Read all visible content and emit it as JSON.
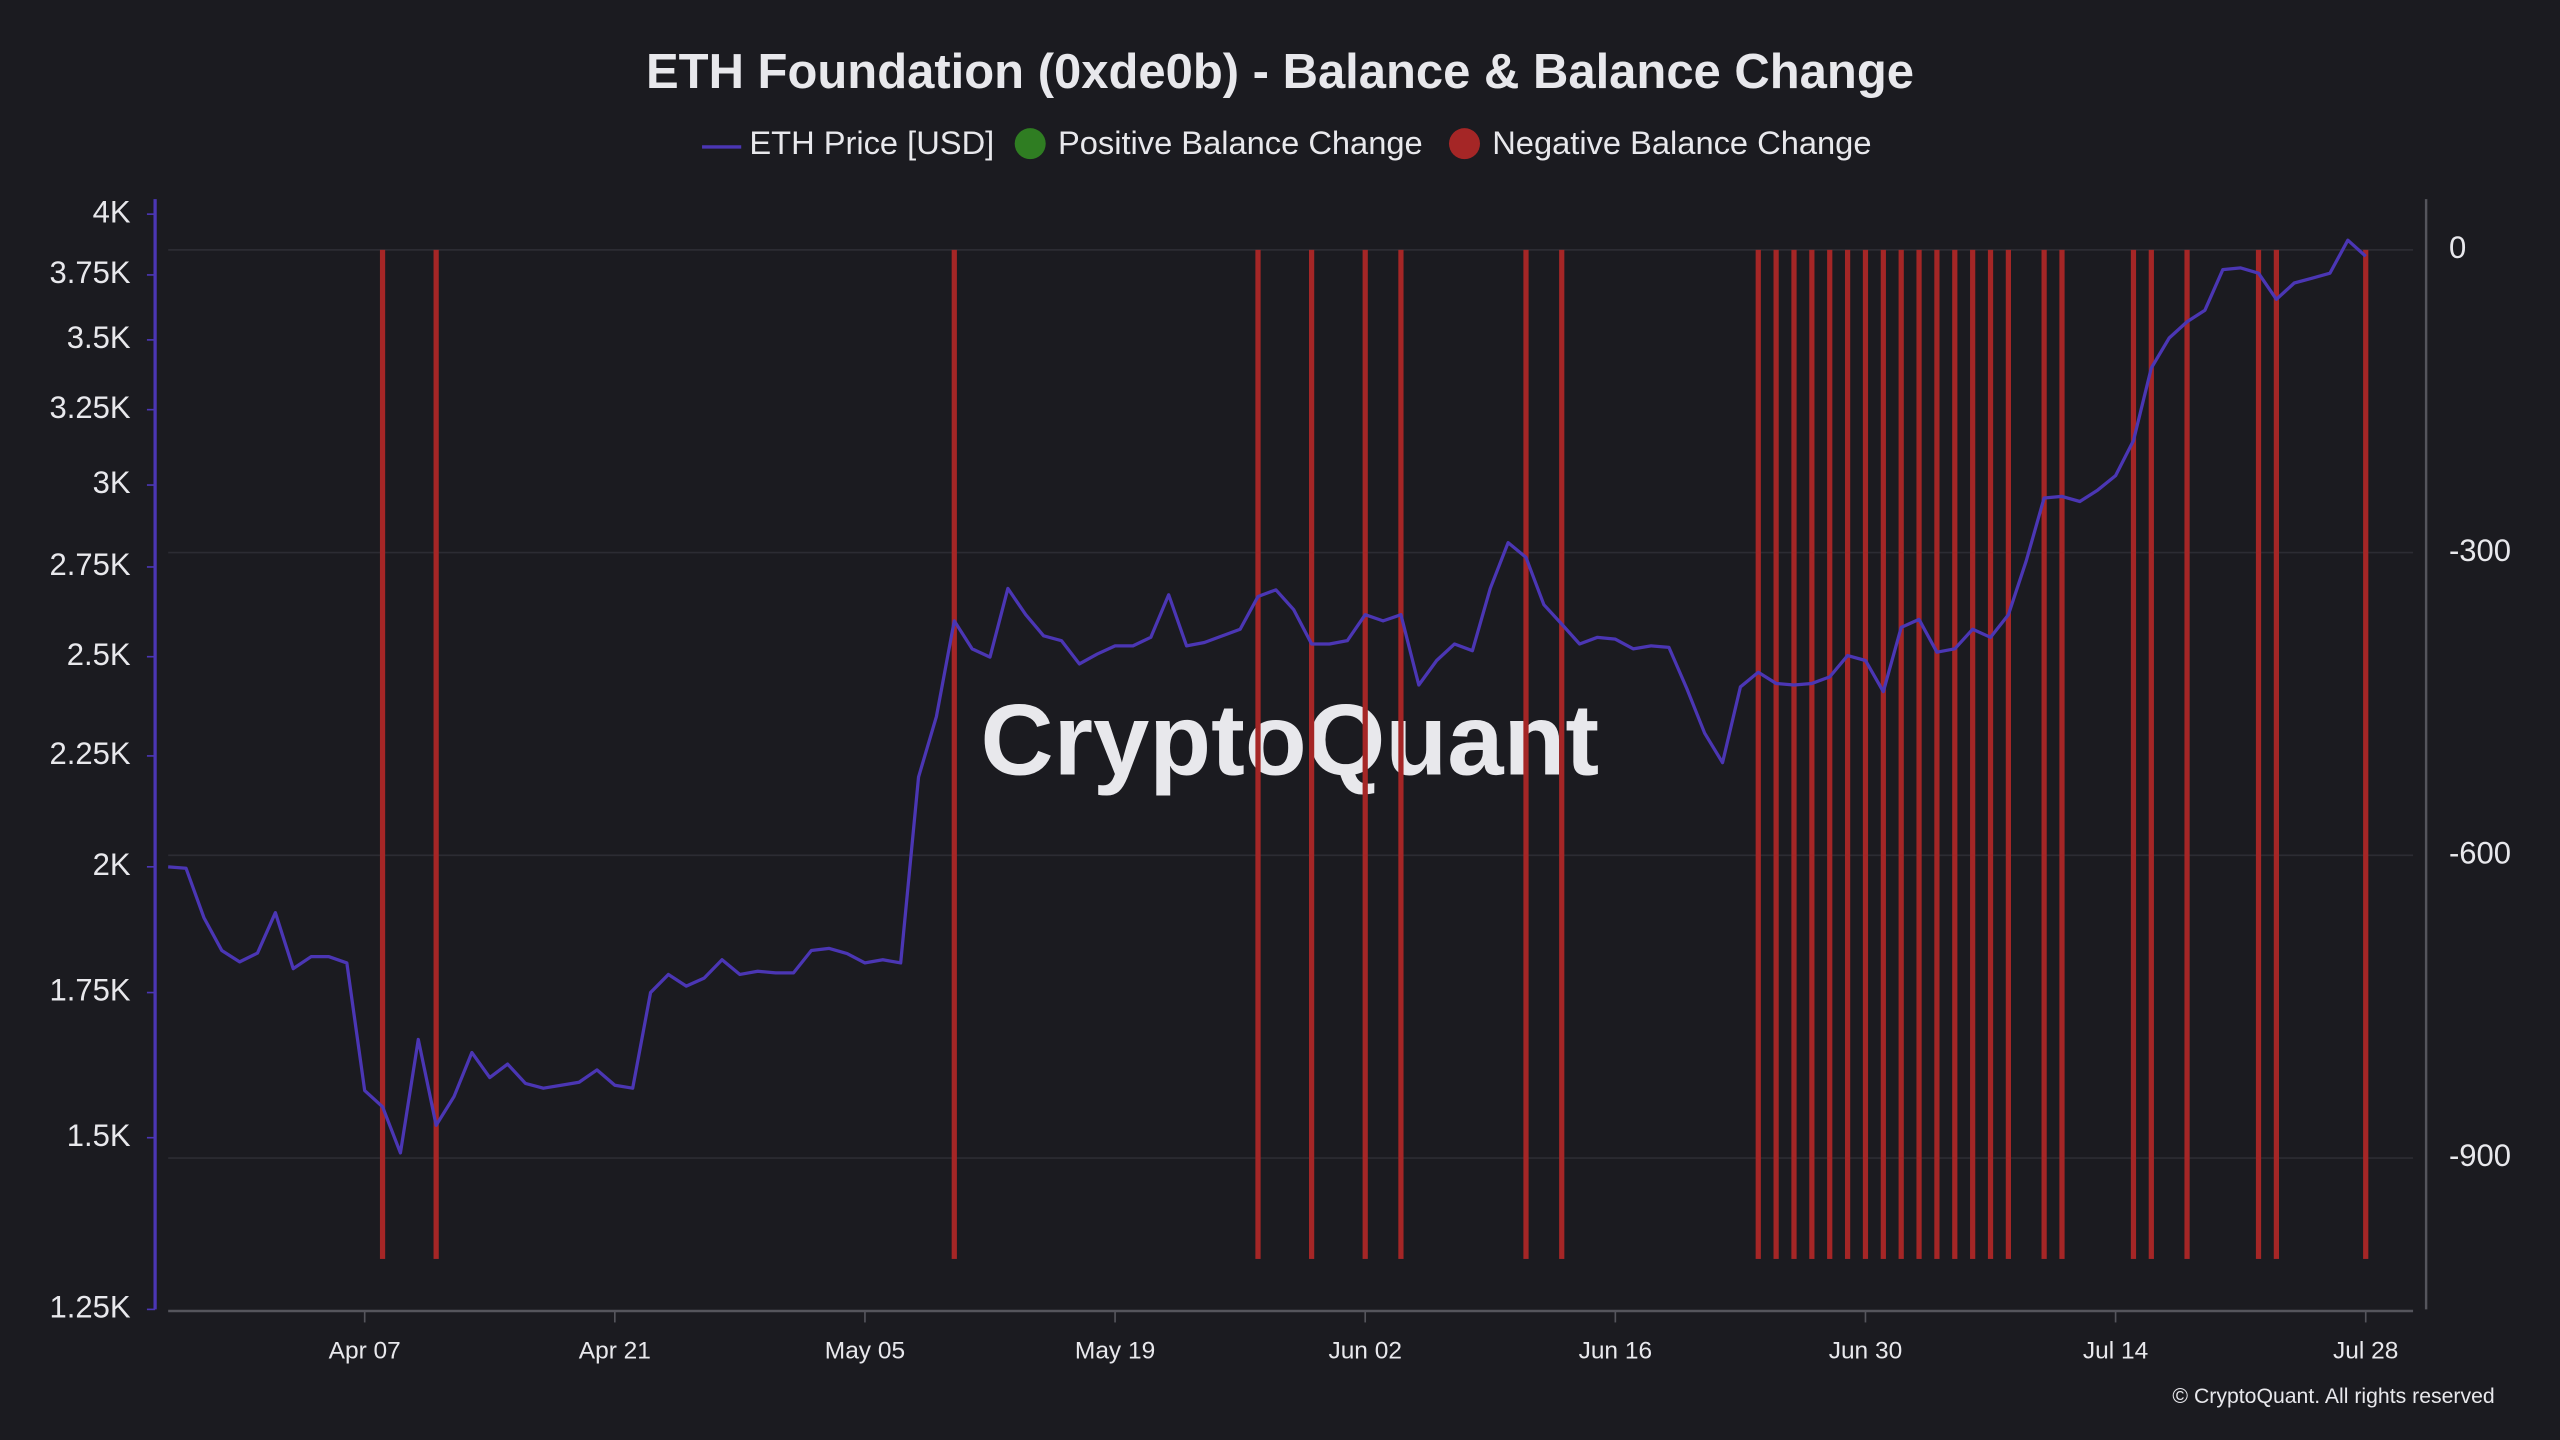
{
  "chart_data": {
    "type": "line",
    "title": "ETH Foundation (0xde0b) - Balance & Balance Change",
    "watermark": "CryptoQuant",
    "copyright": "© CryptoQuant. All rights reserved",
    "x": [
      "Mar 27",
      "Mar 28",
      "Mar 29",
      "Mar 30",
      "Mar 31",
      "Apr 01",
      "Apr 02",
      "Apr 03",
      "Apr 04",
      "Apr 05",
      "Apr 06",
      "Apr 07",
      "Apr 08",
      "Apr 09",
      "Apr 10",
      "Apr 11",
      "Apr 12",
      "Apr 13",
      "Apr 14",
      "Apr 15",
      "Apr 16",
      "Apr 17",
      "Apr 18",
      "Apr 19",
      "Apr 20",
      "Apr 21",
      "Apr 22",
      "Apr 23",
      "Apr 24",
      "Apr 25",
      "Apr 26",
      "Apr 27",
      "Apr 28",
      "Apr 29",
      "Apr 30",
      "May 01",
      "May 02",
      "May 03",
      "May 04",
      "May 05",
      "May 06",
      "May 07",
      "May 08",
      "May 09",
      "May 10",
      "May 11",
      "May 12",
      "May 13",
      "May 14",
      "May 15",
      "May 16",
      "May 17",
      "May 18",
      "May 19",
      "May 20",
      "May 21",
      "May 22",
      "May 23",
      "May 24",
      "May 25",
      "May 26",
      "May 27",
      "May 28",
      "May 29",
      "May 30",
      "May 31",
      "Jun 01",
      "Jun 02",
      "Jun 03",
      "Jun 04",
      "Jun 05",
      "Jun 06",
      "Jun 07",
      "Jun 08",
      "Jun 09",
      "Jun 10",
      "Jun 11",
      "Jun 12",
      "Jun 13",
      "Jun 14",
      "Jun 15",
      "Jun 16",
      "Jun 17",
      "Jun 18",
      "Jun 19",
      "Jun 20",
      "Jun 21",
      "Jun 22",
      "Jun 23",
      "Jun 24",
      "Jun 25",
      "Jun 26",
      "Jun 27",
      "Jun 28",
      "Jun 29",
      "Jun 30",
      "Jul 01",
      "Jul 02",
      "Jul 03",
      "Jul 04",
      "Jul 05",
      "Jul 06",
      "Jul 07",
      "Jul 08",
      "Jul 09",
      "Jul 10",
      "Jul 11",
      "Jul 12",
      "Jul 13",
      "Jul 14",
      "Jul 15",
      "Jul 16",
      "Jul 17",
      "Jul 18",
      "Jul 19",
      "Jul 20",
      "Jul 21",
      "Jul 22",
      "Jul 23",
      "Jul 24",
      "Jul 25",
      "Jul 26",
      "Jul 27",
      "Jul 28"
    ],
    "xticks": [
      "Apr 07",
      "Apr 21",
      "May 05",
      "May 19",
      "Jun 02",
      "Jun 16",
      "Jun 30",
      "Jul 14",
      "Jul 28"
    ],
    "series": [
      {
        "name": "ETH Price [USD]",
        "color": "#4b36b4",
        "axis": "y",
        "kind": "line",
        "values": [
          2000,
          1997,
          1895,
          1830,
          1808,
          1825,
          1905,
          1795,
          1818,
          1818,
          1806,
          1577,
          1550,
          1476,
          1665,
          1520,
          1567,
          1642,
          1599,
          1622,
          1589,
          1581,
          1586,
          1591,
          1612,
          1586,
          1581,
          1750,
          1784,
          1762,
          1777,
          1812,
          1784,
          1790,
          1787,
          1787,
          1830,
          1834,
          1824,
          1806,
          1812,
          1806,
          2200,
          2346,
          2597,
          2521,
          2499,
          2688,
          2614,
          2556,
          2543,
          2481,
          2507,
          2529,
          2529,
          2552,
          2670,
          2529,
          2538,
          2556,
          2574,
          2665,
          2684,
          2628,
          2534,
          2534,
          2543,
          2614,
          2597,
          2614,
          2426,
          2490,
          2534,
          2516,
          2688,
          2822,
          2778,
          2642,
          2588,
          2534,
          2552,
          2547,
          2521,
          2529,
          2525,
          2417,
          2305,
          2234,
          2421,
          2459,
          2430,
          2426,
          2430,
          2447,
          2503,
          2490,
          2409,
          2579,
          2601,
          2512,
          2521,
          2574,
          2552,
          2614,
          2768,
          2959,
          2964,
          2948,
          2984,
          3030,
          3145,
          3397,
          3507,
          3568,
          3612,
          3771,
          3778,
          3757,
          3654,
          3718,
          3737,
          3757,
          3891,
          3825
        ]
      },
      {
        "name": "Positive Balance Change",
        "color": "#2f7d22",
        "axis": "y2",
        "kind": "bar",
        "values": [
          null,
          null,
          null,
          null,
          null,
          null,
          null,
          null,
          null,
          null,
          null,
          null,
          null,
          null,
          null,
          null,
          null,
          null,
          null,
          null,
          null,
          null,
          null,
          null,
          null,
          null,
          null,
          null,
          null,
          null,
          null,
          null,
          null,
          null,
          null,
          null,
          null,
          null,
          null,
          null,
          null,
          null,
          null,
          null,
          null,
          null,
          null,
          null,
          null,
          null,
          null,
          null,
          null,
          null,
          null,
          null,
          null,
          null,
          null,
          null,
          null,
          null,
          null,
          null,
          null,
          null,
          null,
          null,
          null,
          null,
          null,
          null,
          null,
          null,
          null,
          null,
          null,
          null,
          null,
          null,
          null,
          null,
          null,
          null,
          null,
          null,
          null,
          null,
          null,
          null,
          null,
          null,
          null,
          null,
          null,
          null,
          null,
          null,
          null,
          null,
          null,
          null,
          null,
          null,
          null,
          null,
          null,
          null,
          null,
          null,
          null,
          null,
          null,
          null,
          null,
          null,
          null,
          null,
          null,
          null,
          null,
          null,
          null,
          null
        ]
      },
      {
        "name": "Negative Balance Change",
        "color": "#a52626",
        "axis": "y2",
        "kind": "bar",
        "values": [
          null,
          null,
          null,
          null,
          null,
          null,
          null,
          null,
          null,
          null,
          null,
          null,
          -1000,
          null,
          null,
          -1000,
          null,
          null,
          null,
          null,
          null,
          null,
          null,
          null,
          null,
          null,
          null,
          null,
          null,
          null,
          null,
          null,
          null,
          null,
          null,
          null,
          null,
          null,
          null,
          null,
          null,
          null,
          null,
          null,
          -1000,
          null,
          null,
          null,
          null,
          null,
          null,
          null,
          null,
          null,
          null,
          null,
          null,
          null,
          null,
          null,
          null,
          -1000,
          null,
          null,
          -1000,
          null,
          null,
          -1000,
          null,
          -1000,
          null,
          null,
          null,
          null,
          null,
          null,
          -1000,
          null,
          -1000,
          null,
          null,
          null,
          null,
          null,
          null,
          null,
          null,
          null,
          null,
          -1000,
          -1000,
          -1000,
          -1000,
          -1000,
          -1000,
          -1000,
          -1000,
          -1000,
          -1000,
          -1000,
          -1000,
          -1000,
          -1000,
          -1000,
          null,
          -1000,
          -1000,
          null,
          null,
          null,
          -1000,
          -1000,
          null,
          -1000,
          null,
          null,
          null,
          -1000,
          -1000,
          null,
          null,
          null,
          null,
          -1000
        ]
      }
    ],
    "ylim": [
      1250,
      4050
    ],
    "log": true,
    "yticks": [
      {
        "value": 1250,
        "label": "1.25K"
      },
      {
        "value": 1500,
        "label": "1.5K"
      },
      {
        "value": 1750,
        "label": "1.75K"
      },
      {
        "value": 2000,
        "label": "2K"
      },
      {
        "value": 2250,
        "label": "2.25K"
      },
      {
        "value": 2500,
        "label": "2.5K"
      },
      {
        "value": 2750,
        "label": "2.75K"
      },
      {
        "value": 3000,
        "label": "3K"
      },
      {
        "value": 3250,
        "label": "3.25K"
      },
      {
        "value": 3500,
        "label": "3.5K"
      },
      {
        "value": 3750,
        "label": "3.75K"
      },
      {
        "value": 4000,
        "label": "4K"
      }
    ],
    "y2lim": [
      -1050,
      47
    ],
    "y2ticks": [
      0,
      -300,
      -600,
      -900
    ],
    "grid": true
  }
}
